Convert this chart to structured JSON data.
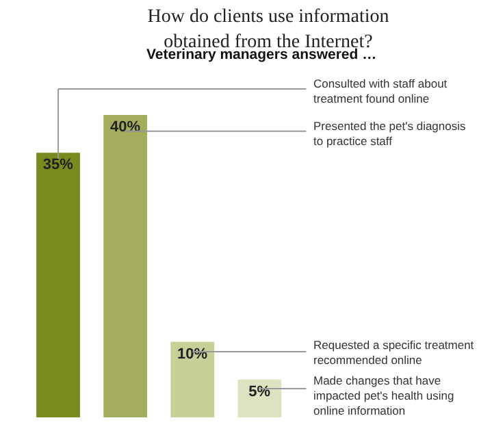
{
  "chart_data": {
    "type": "bar",
    "title": "How do clients use information obtained from the Internet?",
    "subtitle": "Veterinary managers answered …",
    "categories": [
      null,
      null,
      null,
      null
    ],
    "values": [
      35,
      40,
      10,
      5
    ],
    "value_labels": [
      "35%",
      "40%",
      "10%",
      "5%"
    ],
    "colors": [
      "#7b8a1e",
      "#a3ad5c",
      "#c9cf99",
      "#dde2c0"
    ],
    "annotations": [
      "Consulted with staff about treatment found online",
      "Presented the pet's diagnosis to practice staff",
      "Requested a specific treatment recommended online",
      "Made changes that have impacted pet's health using online information"
    ],
    "tick_labels": false
  }
}
